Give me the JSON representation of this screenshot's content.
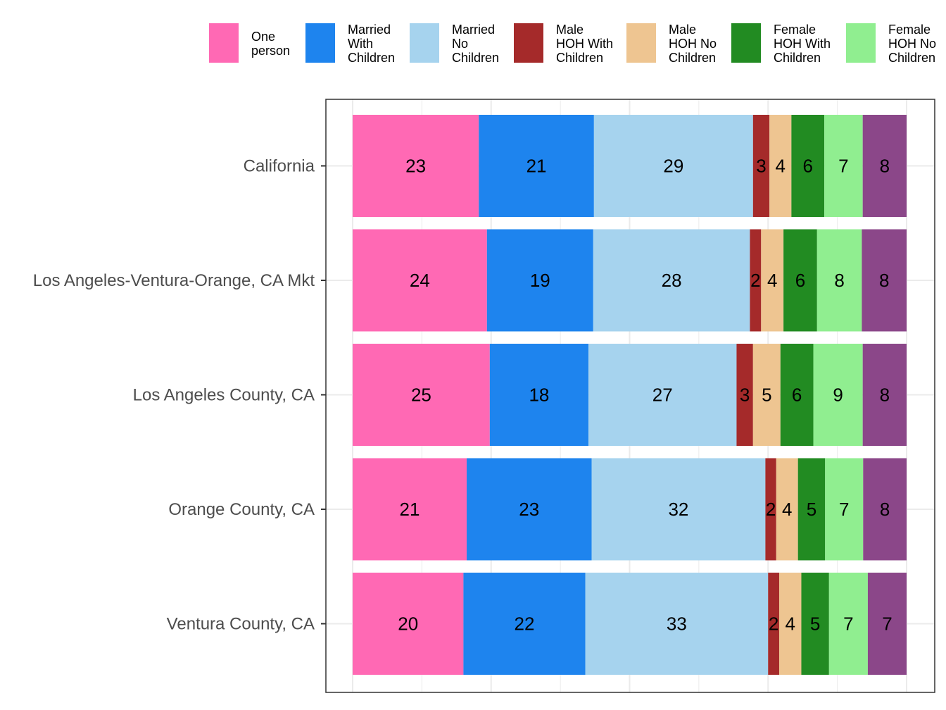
{
  "chart_data": {
    "type": "bar",
    "orientation": "horizontal",
    "stacked": true,
    "title": "",
    "xlabel": "",
    "ylabel": "",
    "categories": [
      "California",
      "Los Angeles-Ventura-Orange, CA Mkt",
      "Los Angeles County, CA",
      "Orange County, CA",
      "Ventura County, CA"
    ],
    "legend_position": "top",
    "grid": true,
    "series": [
      {
        "name": "One\nperson",
        "color": "#FF69B4",
        "values": [
          23,
          24,
          25,
          21,
          20
        ]
      },
      {
        "name": "Married\nWith\nChildren",
        "color": "#1E84EE",
        "values": [
          21,
          19,
          18,
          23,
          22
        ]
      },
      {
        "name": "Married\nNo\nChildren",
        "color": "#A6D3EE",
        "values": [
          29,
          28,
          27,
          32,
          33
        ]
      },
      {
        "name": "Male\nHOH With\nChildren",
        "color": "#A52A2A",
        "values": [
          3,
          2,
          3,
          2,
          2
        ]
      },
      {
        "name": "Male\nHOH No\nChildren",
        "color": "#EEC591",
        "values": [
          4,
          4,
          5,
          4,
          4
        ]
      },
      {
        "name": "Female\nHOH With\nChildren",
        "color": "#228B22",
        "values": [
          6,
          6,
          6,
          5,
          5
        ]
      },
      {
        "name": "Female\nHOH No\nChildren",
        "color": "#90EE90",
        "values": [
          7,
          8,
          9,
          7,
          7
        ]
      },
      {
        "name": "",
        "color": "#8B4789",
        "values": [
          8,
          8,
          8,
          8,
          7
        ]
      }
    ]
  }
}
